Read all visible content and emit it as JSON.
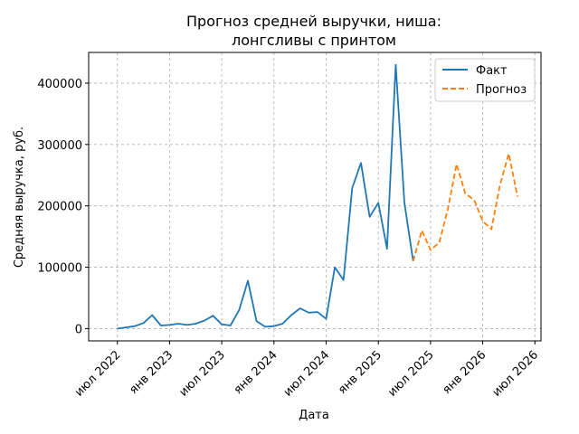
{
  "chart_data": {
    "type": "line",
    "title": [
      "Прогноз средней выручки, ниша:",
      "лонгсливы с принтом"
    ],
    "xlabel": "Дата",
    "ylabel": "Средняя выручка, руб.",
    "ylim": [
      -20000,
      450000
    ],
    "grid": true,
    "legend_position": "top-right",
    "x_tick_labels": [
      "июл 2022",
      "янв 2023",
      "июл 2023",
      "янв 2024",
      "июл 2024",
      "янв 2025",
      "июл 2025",
      "янв 2026",
      "июл 2026"
    ],
    "y_tick_labels": [
      "0",
      "100000",
      "200000",
      "300000",
      "400000"
    ],
    "series": [
      {
        "name": "Факт",
        "color": "#1f77b4",
        "style": "solid",
        "x": [
          "2022-07",
          "2022-08",
          "2022-09",
          "2022-10",
          "2022-11",
          "2022-12",
          "2023-01",
          "2023-02",
          "2023-03",
          "2023-04",
          "2023-05",
          "2023-06",
          "2023-07",
          "2023-08",
          "2023-09",
          "2023-10",
          "2023-11",
          "2023-12",
          "2024-01",
          "2024-02",
          "2024-03",
          "2024-04",
          "2024-05",
          "2024-06",
          "2024-07",
          "2024-08",
          "2024-09",
          "2024-10",
          "2024-11",
          "2024-12",
          "2025-01",
          "2025-02",
          "2025-03",
          "2025-04",
          "2025-05"
        ],
        "y": [
          0,
          2000,
          4000,
          9000,
          22000,
          5000,
          6000,
          8000,
          6000,
          8000,
          13000,
          21000,
          7000,
          5000,
          30000,
          78000,
          12000,
          3000,
          4000,
          8000,
          22000,
          33000,
          26000,
          27000,
          16000,
          100000,
          79000,
          229000,
          270000,
          182000,
          205000,
          130000,
          430000,
          205000,
          110000
        ]
      },
      {
        "name": "Прогноз",
        "color": "#ff7f0e",
        "style": "dashed",
        "x": [
          "2025-05",
          "2025-06",
          "2025-07",
          "2025-08",
          "2025-09",
          "2025-10",
          "2025-11",
          "2025-12",
          "2026-01",
          "2026-02",
          "2026-03",
          "2026-04",
          "2026-05"
        ],
        "y": [
          110000,
          160000,
          128000,
          140000,
          195000,
          268000,
          220000,
          210000,
          175000,
          162000,
          235000,
          285000,
          215000
        ]
      }
    ]
  }
}
